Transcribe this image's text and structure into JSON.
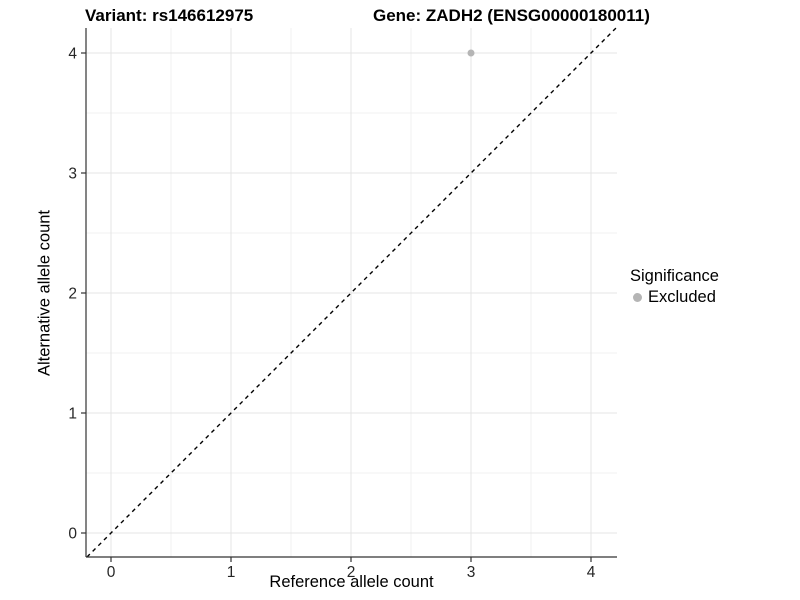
{
  "figure": {
    "title_left": "Variant: rs146612975",
    "title_right": "Gene: ZADH2 (ENSG00000180011)"
  },
  "chart_data": {
    "type": "scatter",
    "title_left": "Variant: rs146612975",
    "title_right": "Gene: ZADH2 (ENSG00000180011)",
    "xlabel": "Reference allele count",
    "ylabel": "Alternative allele count",
    "xlim": [
      -0.21,
      4.22
    ],
    "ylim": [
      -0.2,
      4.21
    ],
    "xticks": [
      0,
      1,
      2,
      3,
      4
    ],
    "yticks": [
      0,
      1,
      2,
      3,
      4
    ],
    "grid": "major+minor",
    "series": [
      {
        "name": "Excluded",
        "color": "#b5b5b5",
        "points": [
          {
            "x": 3,
            "y": 4
          }
        ]
      }
    ],
    "reference_line": {
      "type": "identity",
      "slope": 1,
      "intercept": 0,
      "style": "dashed",
      "color": "#000000"
    },
    "legend": {
      "title": "Significance",
      "position": "right",
      "items": [
        {
          "label": "Excluded",
          "color": "#b5b5b5"
        }
      ]
    }
  },
  "colors": {
    "background": "#ffffff",
    "grid_major": "#e4e4e4",
    "grid_minor": "#f0f0f0",
    "axis_line": "#333333",
    "tick_mark": "#333333",
    "tick_label": "#262626",
    "point": "#b5b5b5",
    "dashed_line": "#000000"
  }
}
